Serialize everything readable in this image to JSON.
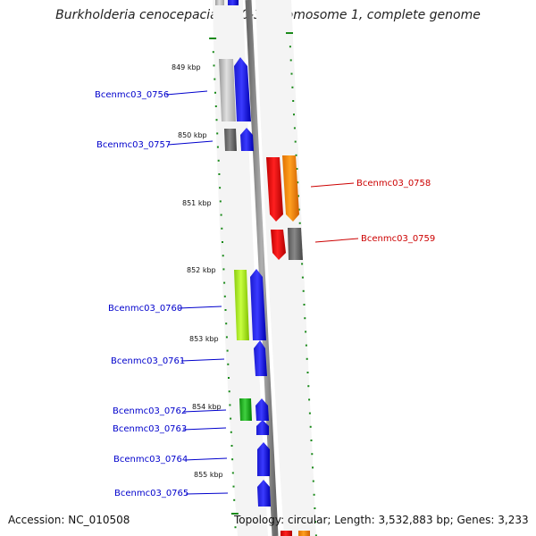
{
  "title": "Burkholderia cenocepacia MC0-3 chromosome 1, complete genome",
  "footer": {
    "accession": "Accession: NC_010508",
    "topology": "Topology: circular; Length: 3,532,883 bp; Genes: 3,233"
  },
  "colors": {
    "tick": "#1a8a1a",
    "forward_label": "#0000cc",
    "reverse_label": "#cc0000",
    "backbone": "#8a8a8a"
  },
  "kbp_labels": [
    "849 kbp",
    "850 kbp",
    "851 kbp",
    "852 kbp",
    "853 kbp",
    "854 kbp",
    "855 kbp"
  ],
  "gene_labels": [
    "Bcenmc03_0756",
    "Bcenmc03_0757",
    "Bcenmc03_0758",
    "Bcenmc03_0759",
    "Bcenmc03_0760",
    "Bcenmc03_0761",
    "Bcenmc03_0762",
    "Bcenmc03_0763",
    "Bcenmc03_0764",
    "Bcenmc03_0765"
  ]
}
